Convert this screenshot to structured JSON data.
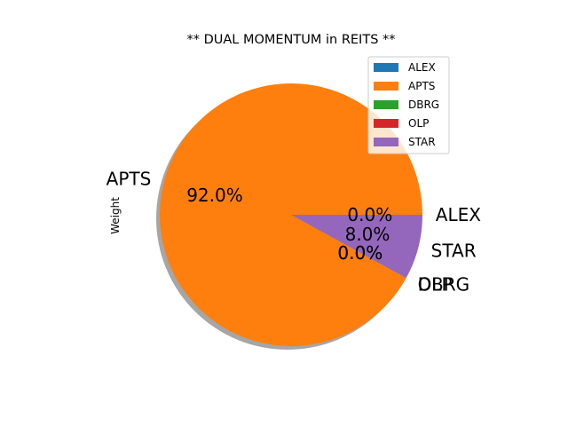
{
  "chart_data": {
    "type": "pie",
    "title": "** DUAL MOMENTUM in REITS **",
    "ylabel": "Weight",
    "legend_position": "upper-right",
    "shadow": true,
    "slices": [
      {
        "label": "ALEX",
        "value": 0.0,
        "pct_label": "0.0%",
        "color": "#1f77b4"
      },
      {
        "label": "APTS",
        "value": 92.0,
        "pct_label": "92.0%",
        "color": "#ff7f0e"
      },
      {
        "label": "DBRG",
        "value": 0.0,
        "pct_label": "0.0%",
        "color": "#2ca02c"
      },
      {
        "label": "OLP",
        "value": 0.0,
        "pct_label": "0.0%",
        "color": "#d62728"
      },
      {
        "label": "STAR",
        "value": 8.0,
        "pct_label": "8.0%",
        "color": "#9467bd"
      }
    ]
  }
}
